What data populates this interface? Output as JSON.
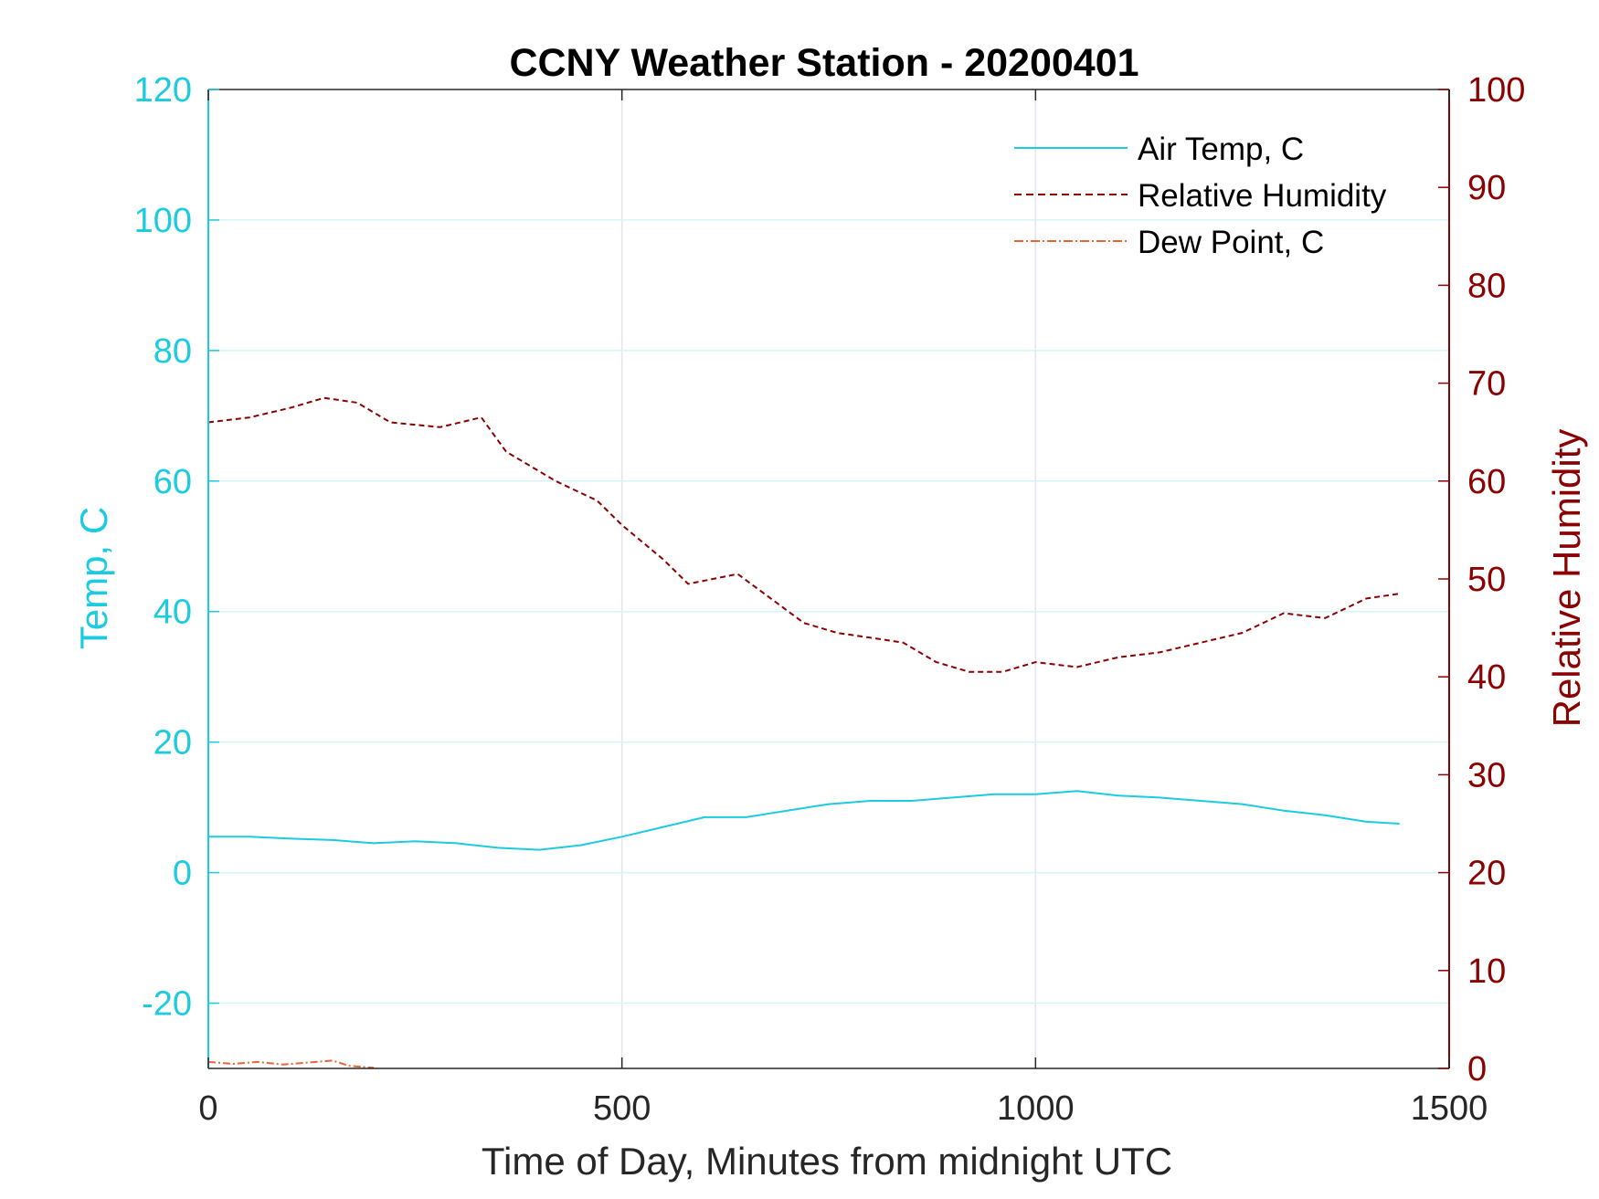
{
  "chart_data": {
    "type": "line",
    "title": "CCNY Weather Station - 20200401",
    "xlabel": "Time of Day, Minutes from midnight UTC",
    "ylabel_left": "Temp, C",
    "ylabel_right": "Relative Humidity",
    "xlim": [
      0,
      1500
    ],
    "ylim_left": [
      -30,
      120
    ],
    "ylim_right": [
      0,
      100
    ],
    "xticks": [
      0,
      500,
      1000,
      1500
    ],
    "yticks_left": [
      -20,
      0,
      20,
      40,
      60,
      80,
      100,
      120
    ],
    "yticks_right": [
      0,
      10,
      20,
      30,
      40,
      50,
      60,
      70,
      80,
      90,
      100
    ],
    "grid": "on",
    "legend_position": "top-right",
    "colors": {
      "temp": "#1ccbe0",
      "rh": "#8b0000",
      "dew": "#e8643c",
      "axis_left": "#1ccbe0",
      "axis_right": "#8b0000",
      "grid": "#dfe6ec"
    },
    "series": [
      {
        "name": "Air Temp, C",
        "axis": "left",
        "style": "solid",
        "x": [
          0,
          50,
          100,
          150,
          200,
          250,
          300,
          350,
          400,
          450,
          500,
          550,
          600,
          650,
          700,
          750,
          800,
          850,
          900,
          950,
          1000,
          1050,
          1100,
          1150,
          1200,
          1250,
          1300,
          1350,
          1400,
          1440
        ],
        "y": [
          5.5,
          5.5,
          5.2,
          5.0,
          4.5,
          4.8,
          4.5,
          3.8,
          3.5,
          4.2,
          5.5,
          7.0,
          8.5,
          8.5,
          9.5,
          10.5,
          11.0,
          11.0,
          11.5,
          12.0,
          12.0,
          12.5,
          11.8,
          11.5,
          11.0,
          10.5,
          9.5,
          8.8,
          7.8,
          7.5
        ]
      },
      {
        "name": "Relative Humidity",
        "axis": "right",
        "style": "dashed",
        "x": [
          0,
          50,
          100,
          140,
          180,
          220,
          280,
          330,
          360,
          420,
          470,
          500,
          550,
          580,
          640,
          680,
          720,
          760,
          800,
          840,
          880,
          920,
          960,
          1000,
          1050,
          1100,
          1150,
          1200,
          1250,
          1300,
          1350,
          1400,
          1440
        ],
        "y": [
          66,
          66.5,
          67.5,
          68.5,
          68,
          66,
          65.5,
          66.5,
          63,
          60,
          58,
          55.5,
          52,
          49.5,
          50.5,
          48,
          45.5,
          44.5,
          44,
          43.5,
          41.5,
          40.5,
          40.5,
          41.5,
          41,
          42,
          42.5,
          43.5,
          44.5,
          46.5,
          46,
          48,
          48.5
        ]
      },
      {
        "name": "Dew Point, C",
        "axis": "left",
        "style": "dashdot",
        "x": [
          0,
          30,
          60,
          90,
          120,
          150,
          170,
          200
        ],
        "y": [
          -29.0,
          -29.3,
          -29.0,
          -29.4,
          -29.1,
          -28.8,
          -29.6,
          -29.9
        ]
      }
    ]
  }
}
